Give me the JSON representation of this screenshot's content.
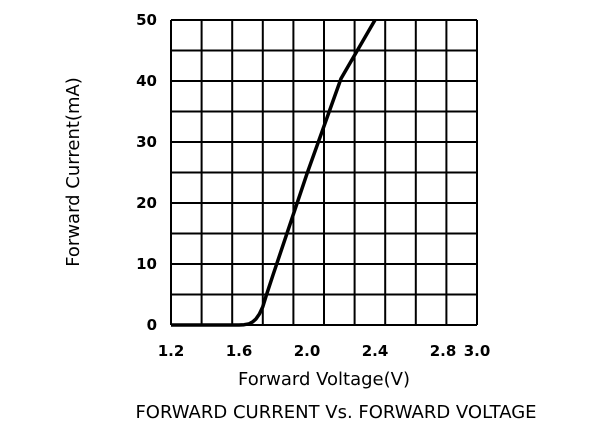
{
  "chart_data": {
    "type": "line",
    "title": "",
    "caption": "FORWARD  CURRENT  Vs.  FORWARD  VOLTAGE",
    "xlabel": "Forward  Voltage(V)",
    "ylabel": "Forward  Current(mA)",
    "xlim": [
      1.2,
      3.0
    ],
    "ylim": [
      0,
      50
    ],
    "x_ticks": [
      "1.2",
      "1.6",
      "2.0",
      "2.4",
      "2.8",
      "3.0"
    ],
    "x_tick_values": [
      1.2,
      1.6,
      2.0,
      2.4,
      2.8,
      3.0
    ],
    "y_ticks": [
      "0",
      "10",
      "20",
      "30",
      "40",
      "50"
    ],
    "y_tick_values": [
      0,
      10,
      20,
      30,
      40,
      50
    ],
    "grid": true,
    "x_grid_lines": 10,
    "y_grid_lines": 10,
    "series": [
      {
        "name": "Forward Current",
        "color": "#000000",
        "x": [
          1.2,
          1.6,
          1.63,
          1.66,
          1.68,
          1.7,
          1.72,
          1.74,
          1.76,
          1.8,
          2.0,
          2.2,
          2.4
        ],
        "y": [
          0,
          0,
          0.05,
          0.2,
          0.5,
          1.0,
          1.8,
          3.0,
          4.8,
          8.2,
          24.8,
          40.4,
          50
        ]
      }
    ]
  }
}
